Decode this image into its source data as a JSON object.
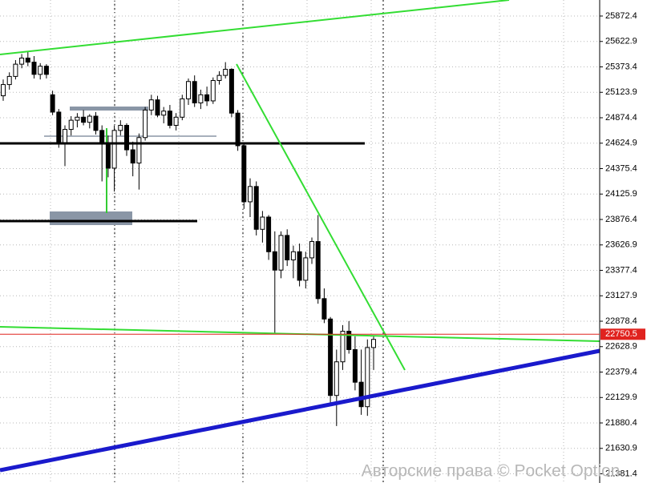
{
  "chart_data": {
    "type": "candlestick",
    "open": [
      25090,
      25200,
      25280,
      25400,
      25460,
      25420,
      25300,
      25380,
      25100,
      24930,
      24620,
      24760,
      24850,
      24880,
      24830,
      24890,
      24750,
      24620,
      24380,
      24750,
      24800,
      24560,
      24430,
      24680,
      24950,
      25050,
      24900,
      24940,
      24800,
      24880,
      25060,
      25230,
      25020,
      25100,
      25040,
      25240,
      25290,
      25350,
      24920,
      24600,
      24050,
      24200,
      23780,
      23900,
      23560,
      23380,
      23720,
      23480,
      23560,
      23280,
      23500,
      23660,
      23100,
      22900,
      22150,
      22480,
      22780,
      22600,
      22280,
      22040,
      22620
    ],
    "high": [
      25250,
      25320,
      25440,
      25500,
      25520,
      25480,
      25410,
      25400,
      25140,
      24960,
      24800,
      24890,
      24920,
      24950,
      24910,
      24930,
      24800,
      24700,
      24800,
      24850,
      24820,
      24640,
      24720,
      24980,
      25100,
      25090,
      24980,
      25000,
      24920,
      25100,
      25260,
      25290,
      25150,
      25180,
      25270,
      25330,
      25420,
      25360,
      24950,
      24630,
      24280,
      24250,
      23960,
      23920,
      23760,
      23760,
      23780,
      23620,
      23640,
      23560,
      23700,
      23920,
      23200,
      22920,
      22600,
      22840,
      22880,
      22730,
      22600,
      22700,
      22730
    ],
    "low": [
      25040,
      25150,
      25250,
      25360,
      25380,
      25260,
      25250,
      25260,
      24900,
      24580,
      24400,
      24700,
      24780,
      24800,
      24770,
      24710,
      24250,
      24290,
      24150,
      24700,
      24500,
      24300,
      24170,
      24650,
      24900,
      24880,
      24820,
      24770,
      24750,
      24850,
      25000,
      24980,
      24960,
      24990,
      25010,
      25200,
      25260,
      24880,
      24550,
      23980,
      23900,
      23720,
      23650,
      23480,
      22760,
      23300,
      23420,
      23300,
      23220,
      23200,
      23440,
      23050,
      22860,
      22060,
      21850,
      22400,
      22560,
      22200,
      21960,
      21950,
      22400
    ],
    "close": [
      25200,
      25280,
      25400,
      25460,
      25420,
      25300,
      25380,
      25300,
      24930,
      24620,
      24760,
      24850,
      24880,
      24830,
      24890,
      24750,
      24620,
      24380,
      24750,
      24800,
      24560,
      24430,
      24680,
      24950,
      25050,
      24900,
      24940,
      24800,
      24880,
      25060,
      25230,
      25020,
      25100,
      25040,
      25240,
      25290,
      25350,
      24920,
      24600,
      24050,
      24200,
      23780,
      23900,
      23560,
      23380,
      23720,
      23480,
      23560,
      23280,
      23500,
      23660,
      23100,
      22900,
      22150,
      22480,
      22780,
      22600,
      22280,
      22040,
      22620,
      22700
    ],
    "ylim": [
      21291.2,
      26029.6
    ],
    "yticks": [
      25872.4,
      25622.9,
      25373.4,
      25123.9,
      24874.4,
      24624.9,
      24375.4,
      24125.9,
      23876.4,
      23626.9,
      23377.4,
      23127.9,
      22878.4,
      22628.9,
      22379.4,
      22129.9,
      21880.4,
      21630.9,
      21381.4
    ],
    "grid": true,
    "current_price": 22750.5,
    "current_price_color": "#e0231f",
    "bull_color": "#ffffff",
    "bear_color": "#000000",
    "watermark": "Авторские права © Pocket Option"
  }
}
